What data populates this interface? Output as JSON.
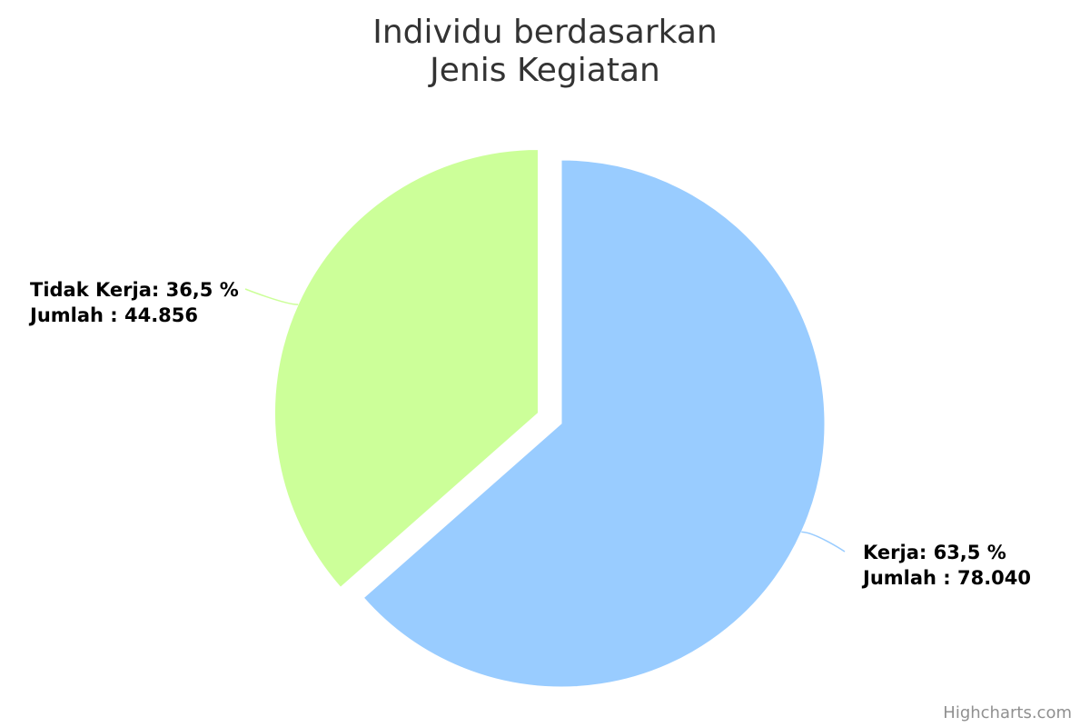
{
  "chart_data": {
    "type": "pie",
    "title": [
      "Individu berdasarkan",
      "Jenis Kegiatan"
    ],
    "slices": [
      {
        "name": "Kerja",
        "value": 78040,
        "percent": 63.5,
        "color": "#99ccff",
        "label_line1": "Kerja: 63,5 %",
        "label_line2": "Jumlah : 78.040"
      },
      {
        "name": "Tidak Kerja",
        "value": 44856,
        "percent": 36.5,
        "color": "#ccff99",
        "label_line1": "Tidak Kerja: 36,5 %",
        "label_line2": "Jumlah : 44.856",
        "sliced": true
      }
    ],
    "start_angle": "top, clockwise",
    "legend": "none"
  },
  "credits": "Highcharts.com"
}
